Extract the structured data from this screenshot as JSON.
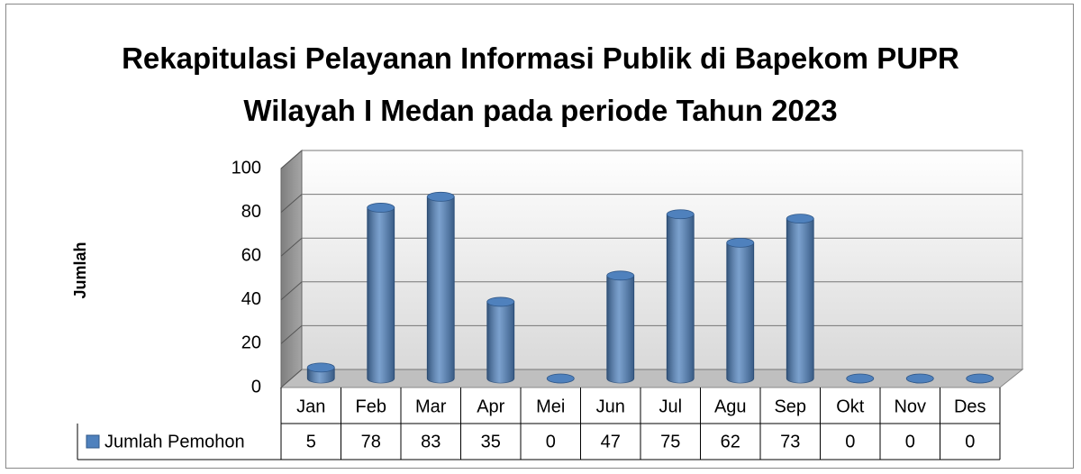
{
  "chart_data": {
    "type": "bar3d",
    "title": "Rekapitulasi Pelayanan Informasi Publik di Bapekom PUPR Wilayah I Medan pada periode Tahun 2023",
    "y_label": "Jumlah",
    "categories": [
      "Jan",
      "Feb",
      "Mar",
      "Apr",
      "Mei",
      "Jun",
      "Jul",
      "Agu",
      "Sep",
      "Okt",
      "Nov",
      "Des"
    ],
    "series": [
      {
        "name": "Jumlah Pemohon",
        "color": "#4f81bd",
        "values": [
          5,
          78,
          83,
          35,
          0,
          47,
          75,
          62,
          73,
          0,
          0,
          0
        ]
      }
    ],
    "ylim": [
      0,
      100
    ],
    "yticks": [
      0,
      20,
      40,
      60,
      80,
      100
    ],
    "grid": true,
    "data_table": true
  }
}
